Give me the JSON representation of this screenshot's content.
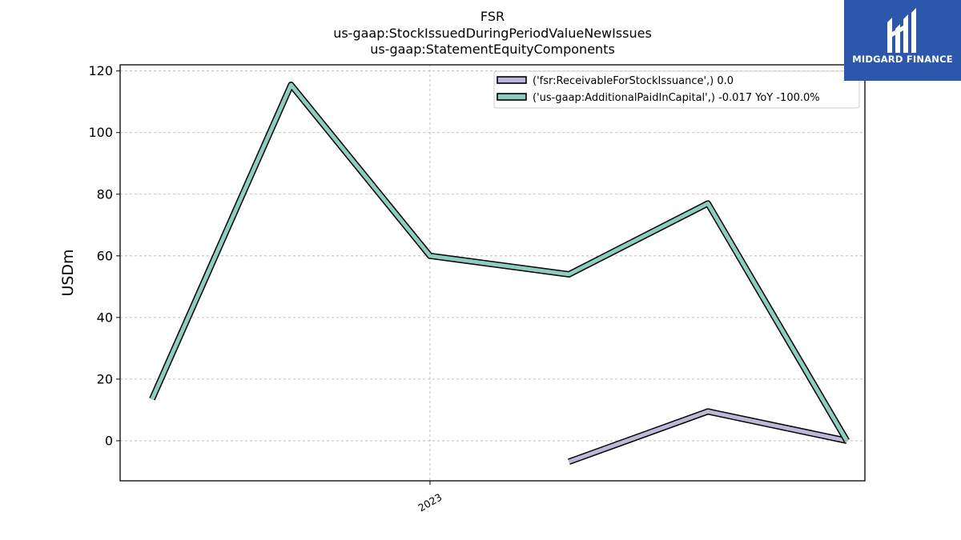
{
  "logo": {
    "text": "MIDGARD FINANCE",
    "icon": "midgard-m-logo-icon",
    "background": "#2c58ab"
  },
  "chart_data": {
    "type": "line",
    "title_lines": [
      "FSR",
      "us-gaap:StockIssuedDuringPeriodValueNewIssues",
      "us-gaap:StatementEquityComponents"
    ],
    "xlabel": "",
    "ylabel": "USDm",
    "ylim": [
      -13,
      122
    ],
    "yticks": [
      0,
      20,
      40,
      60,
      80,
      100,
      120
    ],
    "xticks": [
      {
        "label": "2023",
        "x": 3
      }
    ],
    "xlim": [
      0.77,
      6.13
    ],
    "grid": true,
    "legend_position": "top-right",
    "x": [
      1,
      2,
      3,
      4,
      5,
      6
    ],
    "series": [
      {
        "name": "('fsr:ReceivableForStockIssuance',) 0.0",
        "color": "#bcb8d8",
        "values": [
          null,
          null,
          null,
          -6.8,
          9.5,
          0.0
        ]
      },
      {
        "name": "('us-gaap:AdditionalPaidInCapital',) -0.017 YoY -100.0%",
        "color": "#8dcdbf",
        "values": [
          13.5,
          115.5,
          60,
          54,
          77,
          0.0
        ]
      }
    ]
  }
}
